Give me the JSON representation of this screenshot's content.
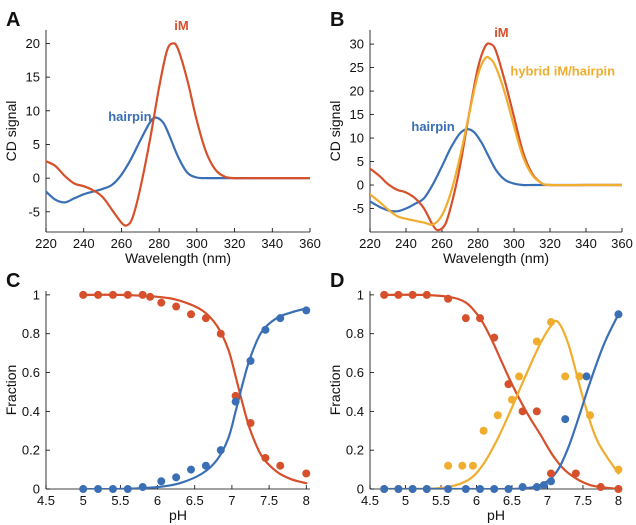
{
  "colors": {
    "blue": "#3a6fb5",
    "red": "#d6502b",
    "yellow": "#f0ad2e"
  },
  "chart_data": [
    {
      "type": "line",
      "panel": "A",
      "xlabel": "Wavelength (nm)",
      "ylabel": "CD signal",
      "xlim": [
        220,
        360
      ],
      "ylim": [
        -8,
        22
      ],
      "xticks": [
        220,
        240,
        260,
        280,
        300,
        320,
        340,
        360
      ],
      "yticks": [
        -5,
        0,
        5,
        10,
        15,
        20
      ],
      "annotations": [
        {
          "text": "iM",
          "x": 288,
          "y": 22,
          "series": "iM"
        },
        {
          "text": "hairpin",
          "x": 253,
          "y": 8.5,
          "series": "hairpin"
        }
      ],
      "series": [
        {
          "name": "hairpin",
          "color": "blue",
          "x": [
            220,
            225,
            230,
            235,
            240,
            245,
            250,
            255,
            260,
            265,
            270,
            275,
            278,
            282,
            285,
            290,
            295,
            300,
            305,
            310,
            320,
            340,
            360
          ],
          "y": [
            -2,
            -3.2,
            -3.6,
            -3.0,
            -2.4,
            -2.0,
            -1.6,
            -1.0,
            0.5,
            2.8,
            5.6,
            8.2,
            9.0,
            8.3,
            6.6,
            3.2,
            0.8,
            0.1,
            0,
            0,
            0,
            0,
            0
          ]
        },
        {
          "name": "iM",
          "color": "red",
          "x": [
            220,
            225,
            230,
            235,
            240,
            245,
            250,
            255,
            260,
            263,
            266,
            270,
            275,
            280,
            284,
            287,
            290,
            295,
            300,
            305,
            310,
            315,
            320,
            330,
            340,
            360
          ],
          "y": [
            2.5,
            1.8,
            0.3,
            -0.8,
            -1.2,
            -1.8,
            -2.8,
            -4.7,
            -6.6,
            -7.0,
            -5.8,
            -1.5,
            5.5,
            13.5,
            18.8,
            20.0,
            19.2,
            14.5,
            8.5,
            3.8,
            1.2,
            0.2,
            0,
            0,
            0,
            0
          ]
        }
      ]
    },
    {
      "type": "line",
      "panel": "B",
      "xlabel": "Wavelength (nm)",
      "ylabel": "CD signal",
      "xlim": [
        220,
        360
      ],
      "ylim": [
        -10,
        33
      ],
      "xticks": [
        220,
        240,
        260,
        280,
        300,
        320,
        340,
        360
      ],
      "yticks": [
        -5,
        0,
        5,
        10,
        15,
        20,
        25,
        30
      ],
      "annotations": [
        {
          "text": "iM",
          "x": 289,
          "y": 31.5,
          "series": "iM"
        },
        {
          "text": "hybrid iM/hairpin",
          "x": 298,
          "y": 23.3,
          "series": "hybrid"
        },
        {
          "text": "hairpin",
          "x": 243,
          "y": 11.5,
          "series": "hairpin"
        }
      ],
      "series": [
        {
          "name": "hairpin",
          "color": "blue",
          "x": [
            220,
            225,
            230,
            235,
            240,
            245,
            250,
            255,
            260,
            265,
            270,
            274,
            278,
            282,
            285,
            290,
            295,
            300,
            305,
            310,
            320,
            340,
            360
          ],
          "y": [
            -3.5,
            -4.6,
            -5.4,
            -5.6,
            -5.0,
            -4.0,
            -2.8,
            0.2,
            4.0,
            8.0,
            11.0,
            11.9,
            11.2,
            9.0,
            6.8,
            3.2,
            1.1,
            0.3,
            0,
            0,
            0,
            0,
            0
          ]
        },
        {
          "name": "iM",
          "color": "red",
          "x": [
            220,
            225,
            230,
            235,
            240,
            245,
            250,
            255,
            258,
            262,
            266,
            270,
            275,
            280,
            284,
            287,
            290,
            295,
            300,
            305,
            310,
            315,
            320,
            340,
            360
          ],
          "y": [
            3.5,
            2.0,
            0.2,
            -1.0,
            -1.6,
            -2.8,
            -5.0,
            -8.6,
            -9.6,
            -8.2,
            -3.0,
            4.0,
            15.0,
            25.0,
            29.5,
            30.0,
            28.5,
            22.0,
            14.5,
            7.0,
            2.5,
            0.5,
            0,
            0,
            0
          ]
        },
        {
          "name": "hybrid",
          "color": "yellow",
          "x": [
            220,
            225,
            230,
            235,
            240,
            245,
            250,
            255,
            260,
            265,
            270,
            275,
            280,
            284,
            287,
            290,
            295,
            300,
            305,
            310,
            315,
            320,
            340,
            360
          ],
          "y": [
            -2.0,
            -3.5,
            -5.2,
            -6.6,
            -7.2,
            -7.6,
            -8.0,
            -8.4,
            -6.4,
            -1.5,
            6.0,
            15.0,
            23.5,
            27.0,
            26.8,
            25.0,
            19.5,
            12.5,
            6.0,
            2.2,
            0.5,
            0,
            0,
            0
          ]
        }
      ]
    },
    {
      "type": "scatter",
      "panel": "C",
      "xlabel": "pH",
      "ylabel": "Fraction",
      "xlim": [
        4.5,
        8.05
      ],
      "ylim": [
        0,
        1.02
      ],
      "xticks": [
        4.5,
        5,
        5.5,
        6,
        6.5,
        7,
        7.5,
        8
      ],
      "yticks": [
        0,
        0.2,
        0.4,
        0.6,
        0.8,
        1
      ],
      "series": [
        {
          "name": "iM",
          "color": "red",
          "points": {
            "x": [
              5.0,
              5.2,
              5.4,
              5.6,
              5.8,
              5.9,
              6.05,
              6.25,
              6.45,
              6.65,
              6.85,
              7.05,
              7.25,
              7.45,
              7.65,
              8.0
            ],
            "y": [
              1.0,
              1.0,
              1.0,
              1.0,
              1.0,
              0.99,
              0.96,
              0.94,
              0.9,
              0.88,
              0.8,
              0.48,
              0.34,
              0.16,
              0.12,
              0.08
            ]
          },
          "fit": {
            "x": [
              5.0,
              5.5,
              6.0,
              6.3,
              6.6,
              6.8,
              6.95,
              7.05,
              7.15,
              7.25,
              7.4,
              7.6,
              7.8,
              8.0
            ],
            "y": [
              1.0,
              1.0,
              0.99,
              0.97,
              0.92,
              0.84,
              0.72,
              0.58,
              0.43,
              0.3,
              0.17,
              0.09,
              0.05,
              0.03
            ]
          }
        },
        {
          "name": "hairpin",
          "color": "blue",
          "points": {
            "x": [
              5.0,
              5.2,
              5.4,
              5.6,
              5.8,
              6.05,
              6.25,
              6.45,
              6.65,
              6.85,
              7.05,
              7.25,
              7.45,
              7.65,
              8.0
            ],
            "y": [
              0.0,
              0.0,
              0.0,
              0.0,
              0.01,
              0.04,
              0.06,
              0.1,
              0.12,
              0.2,
              0.45,
              0.66,
              0.82,
              0.88,
              0.92
            ]
          },
          "fit": {
            "x": [
              5.0,
              5.5,
              6.0,
              6.3,
              6.6,
              6.8,
              6.95,
              7.05,
              7.15,
              7.25,
              7.4,
              7.6,
              7.8,
              8.0
            ],
            "y": [
              0.0,
              0.0,
              0.01,
              0.03,
              0.08,
              0.15,
              0.26,
              0.4,
              0.55,
              0.68,
              0.81,
              0.88,
              0.91,
              0.93
            ]
          }
        }
      ]
    },
    {
      "type": "scatter",
      "panel": "D",
      "xlabel": "pH",
      "ylabel": "Fraction",
      "xlim": [
        4.5,
        8.05
      ],
      "ylim": [
        0,
        1.02
      ],
      "xticks": [
        4.5,
        5,
        5.5,
        6,
        6.5,
        7,
        7.5,
        8
      ],
      "yticks": [
        0,
        0.2,
        0.4,
        0.6,
        0.8,
        1
      ],
      "series": [
        {
          "name": "iM",
          "color": "red",
          "points": {
            "x": [
              4.7,
              4.9,
              5.1,
              5.3,
              5.6,
              5.85,
              6.05,
              6.25,
              6.45,
              6.65,
              6.85,
              7.05,
              7.4,
              7.75,
              8.0
            ],
            "y": [
              1.0,
              1.0,
              1.0,
              1.0,
              0.98,
              0.88,
              0.88,
              0.78,
              0.54,
              0.4,
              0.4,
              0.08,
              0.08,
              0.01,
              0.0
            ]
          },
          "fit": {
            "x": [
              4.7,
              5.2,
              5.6,
              5.85,
              6.05,
              6.2,
              6.35,
              6.5,
              6.7,
              6.9,
              7.1,
              7.3,
              7.6,
              8.0
            ],
            "y": [
              1.0,
              1.0,
              0.99,
              0.96,
              0.88,
              0.78,
              0.66,
              0.54,
              0.4,
              0.28,
              0.16,
              0.08,
              0.02,
              0.0
            ]
          }
        },
        {
          "name": "hybrid",
          "color": "yellow",
          "points": {
            "x": [
              4.7,
              4.9,
              5.1,
              5.3,
              5.6,
              5.8,
              5.95,
              6.1,
              6.3,
              6.5,
              6.6,
              6.85,
              7.05,
              7.25,
              7.45,
              7.6,
              8.0
            ],
            "y": [
              0.0,
              0.0,
              0.0,
              0.0,
              0.12,
              0.12,
              0.12,
              0.3,
              0.38,
              0.46,
              0.58,
              0.76,
              0.86,
              0.58,
              0.58,
              0.38,
              0.1
            ]
          },
          "fit": {
            "x": [
              4.7,
              5.2,
              5.6,
              5.9,
              6.1,
              6.3,
              6.5,
              6.7,
              6.9,
              7.05,
              7.15,
              7.3,
              7.5,
              7.7,
              8.0
            ],
            "y": [
              0.0,
              0.0,
              0.01,
              0.05,
              0.13,
              0.26,
              0.42,
              0.59,
              0.75,
              0.84,
              0.86,
              0.74,
              0.47,
              0.25,
              0.08
            ]
          }
        },
        {
          "name": "hairpin",
          "color": "blue",
          "points": {
            "x": [
              4.7,
              4.9,
              5.1,
              5.3,
              5.6,
              5.85,
              6.05,
              6.25,
              6.45,
              6.65,
              6.85,
              6.95,
              7.05,
              7.25,
              7.55,
              8.0
            ],
            "y": [
              0.0,
              0.0,
              0.0,
              0.0,
              0.0,
              0.0,
              0.0,
              0.0,
              0.0,
              0.01,
              0.01,
              0.02,
              0.04,
              0.36,
              0.58,
              0.9
            ]
          },
          "fit": {
            "x": [
              4.7,
              5.5,
              6.0,
              6.5,
              6.8,
              7.0,
              7.15,
              7.3,
              7.45,
              7.6,
              7.8,
              8.0
            ],
            "y": [
              0.0,
              0.0,
              0.0,
              0.0,
              0.01,
              0.04,
              0.1,
              0.22,
              0.38,
              0.55,
              0.75,
              0.9
            ]
          }
        }
      ]
    }
  ]
}
